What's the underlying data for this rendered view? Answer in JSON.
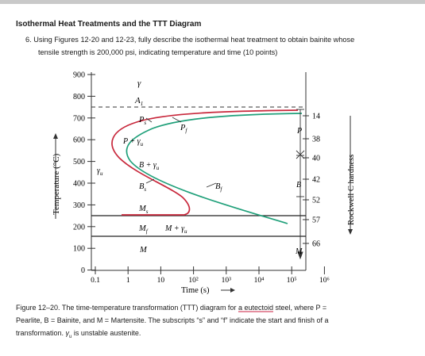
{
  "document": {
    "heading": "Isothermal Heat Treatments and the TTT Diagram",
    "question_line1": "6.   Using Figures 12-20 and 12-23, fully describe the isothermal heat treatment to obtain bainite whose",
    "question_line2": "tensile strength is 200,000 psi, indicating temperature and time (10 points)"
  },
  "figure": {
    "y_axis_label": "Temperature (°C)",
    "x_axis_label": "Time (s)",
    "right_axis_label": "Rockwell C hardness",
    "y_ticks": [
      "900",
      "800",
      "700",
      "600",
      "500",
      "400",
      "300",
      "200",
      "100",
      "0"
    ],
    "x_ticks": [
      "0.1",
      "1",
      "10",
      "10²",
      "10³",
      "10⁴",
      "10⁵",
      "10⁶"
    ],
    "hardness_ticks": [
      "14",
      "38",
      "40",
      "42",
      "52",
      "57",
      "66"
    ],
    "region_labels": {
      "gamma": "γ",
      "a1": "A",
      "a1_sub": "1",
      "ps": "P",
      "ps_sub": "s",
      "pf": "P",
      "pf_sub": "f",
      "p_gamma": "P + γ",
      "p_gamma_sub": "u",
      "gamma_u": "γ",
      "gamma_u_sub": "u",
      "b_gamma": "B + γ",
      "b_gamma_sub": "u",
      "bs": "B",
      "bs_sub": "s",
      "bf": "B",
      "bf_sub": "f",
      "ms": "M",
      "ms_sub": "s",
      "mf": "M",
      "mf_sub": "f",
      "m_gamma": "M + γ",
      "m_gamma_sub": "u",
      "m_bottom": "M",
      "p_right": "P",
      "b_right": "B",
      "m_right": "M"
    },
    "colors": {
      "start_curve": "#c8283c",
      "finish_curve": "#20a07a",
      "axis": "#333333",
      "dashed": "#333333"
    }
  },
  "caption": {
    "line1_before": "Figure 12–20.  The time-temperature transformation (TTT) diagram for ",
    "line1_underlined": "a eutectoid",
    "line1_after": " steel, where P =",
    "line2": "Pearlite, B = Bainite, and M = Martensite.  The subscripts “s” and “f” indicate the start and finish of a",
    "line3_before": "transformation.  ",
    "line3_gamma": "γ",
    "line3_gamma_sub": "u",
    "line3_after": " is unstable austenite."
  }
}
